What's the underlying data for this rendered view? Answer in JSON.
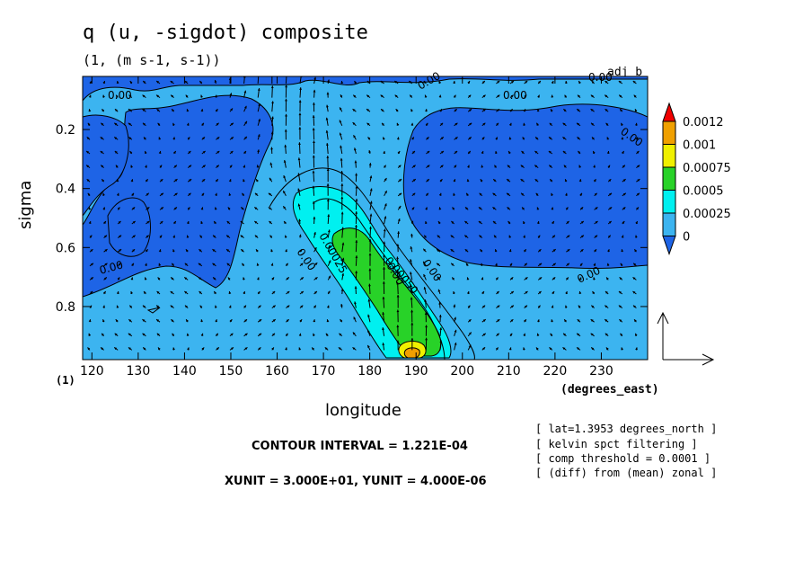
{
  "chart_data": {
    "type": "contour",
    "title": "q (u, -sigdot) composite",
    "subtitle": "(1, (m s-1, s-1))",
    "run_label": "adj_b",
    "xlabel": "longitude",
    "xunits": "(degrees_east)",
    "ylabel": "sigma",
    "yunits": "(1)",
    "x_ticks": [
      "120",
      "130",
      "140",
      "150",
      "160",
      "170",
      "180",
      "190",
      "200",
      "210",
      "220",
      "230"
    ],
    "y_ticks": [
      "0.2",
      "0.4",
      "0.6",
      "0.8"
    ],
    "xlim": [
      118,
      240
    ],
    "ylim": [
      0.02,
      0.98
    ],
    "y_inverted": true,
    "colorbar": {
      "levels": [
        "0",
        "0.00025",
        "0.0005",
        "0.00075",
        "0.001",
        "0.0012"
      ],
      "colors": [
        "#1e64e6",
        "#3cb4f0",
        "#00f0f0",
        "#28d228",
        "#f0f000",
        "#f0a000",
        "#f00000"
      ]
    },
    "contour_labels": [
      "0.00",
      "0.00",
      "0.00",
      "0.00",
      "0.00",
      "0.00",
      "0.00",
      "0.00",
      "0.00",
      "0.00",
      "0.00025",
      "0.00050"
    ],
    "contour_interval": "CONTOUR INTERVAL = 1.221E-04",
    "unit_scale": "XUNIT = 3.000E+01, YUNIT = 4.000E-06",
    "notes": [
      "[ lat=1.3953 degrees_north ]",
      "[ kelvin spct filtering ]",
      "[ comp threshold = 0.0001 ]",
      "[ (diff) from (mean) zonal ]"
    ],
    "grid": false,
    "legend_position": "right"
  }
}
